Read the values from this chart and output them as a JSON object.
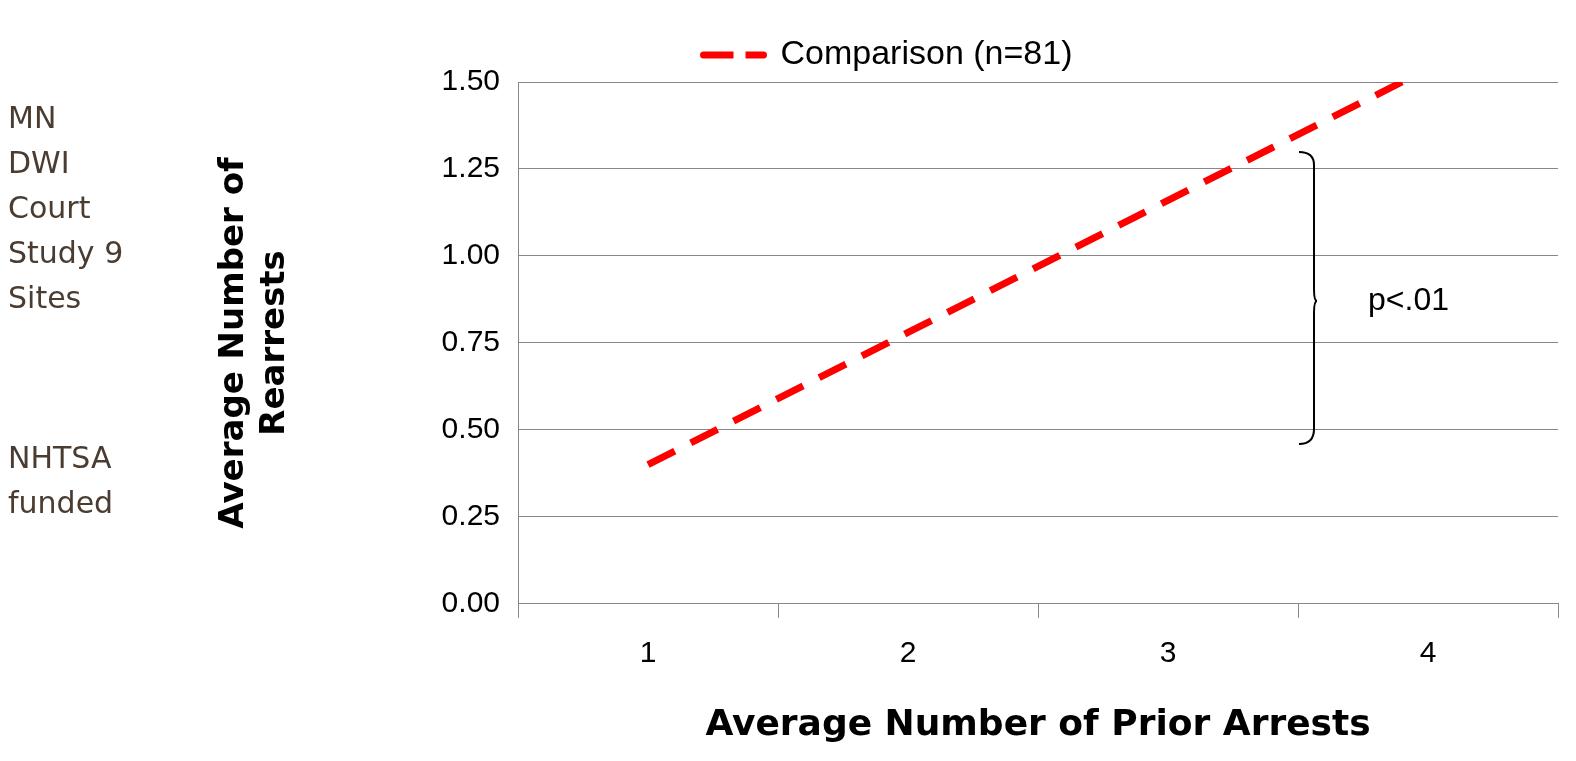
{
  "chart_data": {
    "type": "line",
    "xlabel": "Average Number of Prior Arrests",
    "ylabel": "Average Number of Rearrests",
    "x": [
      1,
      2,
      3,
      3.9
    ],
    "series": [
      {
        "name": "Comparison (n=81)",
        "color": "#ff0000",
        "values": [
          0.4,
          0.78,
          1.16,
          1.5
        ]
      }
    ],
    "xlim": [
      0.5,
      4.5
    ],
    "xticks": [
      {
        "value": 0.5,
        "label": null
      },
      1,
      {
        "value": 1.5,
        "label": null
      },
      2,
      {
        "value": 2.5,
        "label": null
      },
      3,
      {
        "value": 3.5,
        "label": null
      },
      4,
      {
        "value": 4.5,
        "label": null
      }
    ],
    "ylim": [
      0,
      1.5
    ],
    "yticks": [
      {
        "value": 0,
        "label": "0.00"
      },
      {
        "value": 0.25,
        "label": "0.25"
      },
      {
        "value": 0.5,
        "label": "0.50"
      },
      {
        "value": 0.75,
        "label": "0.75"
      },
      {
        "value": 1,
        "label": "1.00"
      },
      {
        "value": 1.25,
        "label": "1.25"
      },
      {
        "value": 1.5,
        "label": "1.50"
      }
    ],
    "grid": "y",
    "legend": "top",
    "marker": "none",
    "line_style": "dashed",
    "annotations": [
      "MN DWI Court Study 9 Sites",
      "NHTSA funded",
      "p<.01"
    ]
  }
}
